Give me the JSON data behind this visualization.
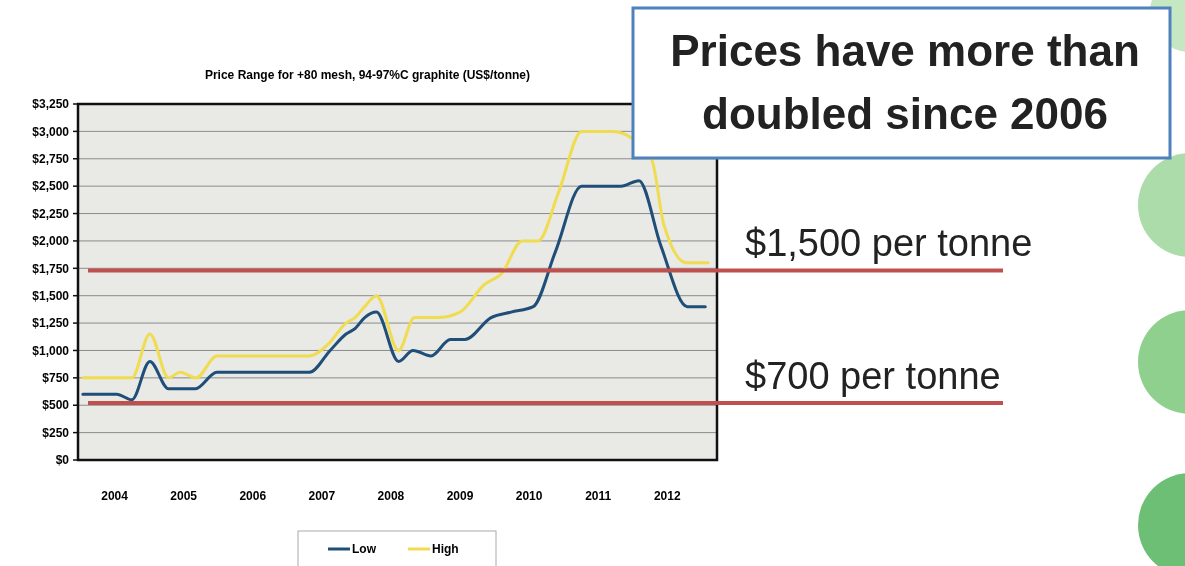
{
  "chart_data": {
    "type": "line",
    "title": "Price Range for +80 mesh, 94-97%C graphite (US$/tonne)",
    "xlim": [
      2003.47,
      2012.72
    ],
    "xticks": [
      2004,
      2005,
      2006,
      2007,
      2008,
      2009,
      2010,
      2011,
      2012
    ],
    "ylim": [
      0,
      3250
    ],
    "yticks": [
      {
        "value": 0,
        "label": "$0"
      },
      {
        "value": 250,
        "label": "$250"
      },
      {
        "value": 500,
        "label": "$500"
      },
      {
        "value": 750,
        "label": "$750"
      },
      {
        "value": 1000,
        "label": "$1,000"
      },
      {
        "value": 1250,
        "label": "$1,250"
      },
      {
        "value": 1500,
        "label": "$1,500"
      },
      {
        "value": 1750,
        "label": "$1,750"
      },
      {
        "value": 2000,
        "label": "$2,000"
      },
      {
        "value": 2250,
        "label": "$2,250"
      },
      {
        "value": 2500,
        "label": "$2,500"
      },
      {
        "value": 2750,
        "label": "$2,750"
      },
      {
        "value": 3000,
        "label": "$3,000"
      },
      {
        "value": 3250,
        "label": "$3,250"
      }
    ],
    "grid": "y",
    "legend": "bottom",
    "marker": "none",
    "line_style": "solid",
    "series": [
      {
        "name": "Low",
        "color": "#1f4e79",
        "x": [
          2003.54,
          2004.03,
          2004.25,
          2004.51,
          2004.78,
          2004.95,
          2005.17,
          2005.48,
          2005.78,
          2006.82,
          2007.12,
          2007.35,
          2007.48,
          2007.62,
          2007.79,
          2008.11,
          2008.32,
          2008.58,
          2008.86,
          2009.07,
          2009.45,
          2009.74,
          2010.06,
          2010.38,
          2010.76,
          2011.33,
          2011.59,
          2011.91,
          2012.29,
          2012.55
        ],
        "values": [
          600,
          600,
          550,
          900,
          650,
          650,
          650,
          800,
          800,
          800,
          1000,
          1150,
          1200,
          1300,
          1350,
          900,
          1000,
          950,
          1100,
          1100,
          1300,
          1350,
          1400,
          1900,
          2500,
          2500,
          2550,
          1950,
          1400,
          1400
        ]
      },
      {
        "name": "High",
        "color": "#f0dc50",
        "x": [
          2003.54,
          2004.03,
          2004.25,
          2004.51,
          2004.78,
          2004.95,
          2005.18,
          2005.48,
          2005.78,
          2006.82,
          2007.08,
          2007.35,
          2007.48,
          2007.62,
          2007.79,
          2008.11,
          2008.34,
          2008.68,
          2009.0,
          2009.35,
          2009.6,
          2009.9,
          2010.13,
          2010.43,
          2010.76,
          2011.21,
          2011.77,
          2011.95,
          2012.28,
          2012.59
        ],
        "values": [
          750,
          750,
          750,
          1150,
          750,
          800,
          750,
          950,
          950,
          950,
          1050,
          1250,
          1300,
          1400,
          1500,
          1000,
          1300,
          1300,
          1350,
          1600,
          1700,
          2000,
          2000,
          2450,
          3000,
          3000,
          2750,
          2150,
          1800,
          1800
        ]
      }
    ],
    "ref_lines": [
      {
        "axis": "y",
        "value": 520,
        "label": "$700 per tonne",
        "color": "#c0504d"
      },
      {
        "axis": "y",
        "value": 1730,
        "label": "$1,500 per tonne",
        "color": "#c0504d"
      }
    ],
    "annotations": [
      "Prices have more than doubled since 2006"
    ]
  }
}
